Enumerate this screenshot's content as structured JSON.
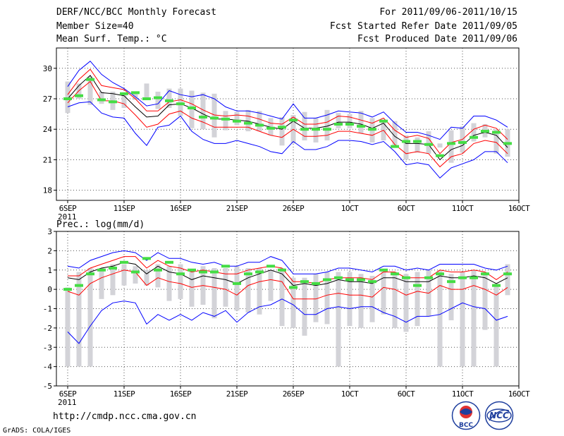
{
  "header": {
    "title": "DERF/NCC/BCC Monthly Forecast",
    "member_size": "Member Size=40",
    "variable": "Mean Surf. Temp.: °C",
    "period": "For 2011/09/06-2011/10/15",
    "started": "Fcst Started Refer Date 2011/09/05",
    "produced": "Fcst Produced Date 2011/09/06"
  },
  "footer": {
    "url": "http://cmdp.ncc.cma.gov.cn",
    "credit": "GrADS: COLA/IGES",
    "logo_left_text": "BCC",
    "logo_right_text": "NCC"
  },
  "colors": {
    "envelope": "#0000ff",
    "spread": "#ff0000",
    "ensemble_mean": "#000000",
    "box": "#d3d3d8",
    "marker": "#44dd44",
    "grid": "#555555"
  },
  "chart_data": [
    {
      "type": "line",
      "title": "Mean Surf. Temp.: °C",
      "x_tick_labels": [
        "6SEP",
        "11SEP",
        "16SEP",
        "21SEP",
        "26SEP",
        "1OCT",
        "6OCT",
        "11OCT",
        "16OCT"
      ],
      "x_tick_days": [
        0,
        5,
        10,
        15,
        20,
        25,
        30,
        35,
        40
      ],
      "x_year_label": "2011",
      "xlim": [
        -1,
        40
      ],
      "ylim": [
        17,
        32
      ],
      "y_ticks": [
        18,
        21,
        24,
        27,
        30
      ],
      "days": [
        0,
        1,
        2,
        3,
        4,
        5,
        6,
        7,
        8,
        9,
        10,
        11,
        12,
        13,
        14,
        15,
        16,
        17,
        18,
        19,
        20,
        21,
        22,
        23,
        24,
        25,
        26,
        27,
        28,
        29,
        30,
        31,
        32,
        33,
        34,
        35,
        36,
        37,
        38,
        39
      ],
      "series": [
        {
          "name": "max",
          "color": "blue",
          "values": [
            28.2,
            29.8,
            30.7,
            29.4,
            28.6,
            28.0,
            27.2,
            26.3,
            26.5,
            27.8,
            27.4,
            27.2,
            27.4,
            27.0,
            26.2,
            25.8,
            25.8,
            25.6,
            25.3,
            25.0,
            26.5,
            25.1,
            25.1,
            25.4,
            25.8,
            25.7,
            25.6,
            25.2,
            25.7,
            24.6,
            23.7,
            23.7,
            23.4,
            23.0,
            24.2,
            24.1,
            25.3,
            25.3,
            24.9,
            24.2
          ]
        },
        {
          "name": "upper",
          "color": "red",
          "values": [
            27.4,
            28.9,
            29.9,
            28.3,
            28.1,
            27.9,
            27.0,
            25.8,
            25.8,
            26.7,
            26.9,
            26.5,
            25.9,
            25.4,
            25.3,
            25.4,
            25.3,
            25.0,
            24.6,
            24.5,
            25.2,
            24.5,
            24.5,
            24.7,
            25.3,
            25.2,
            24.9,
            24.6,
            25.1,
            23.9,
            23.2,
            23.4,
            23.1,
            21.6,
            22.7,
            23.0,
            24.0,
            24.4,
            24.1,
            23.0
          ]
        },
        {
          "name": "mean",
          "color": "black",
          "values": [
            27.0,
            28.3,
            29.3,
            27.6,
            27.5,
            27.3,
            26.2,
            25.2,
            25.3,
            26.4,
            26.5,
            26.1,
            25.5,
            25.0,
            25.0,
            24.9,
            24.8,
            24.5,
            24.2,
            24.0,
            24.8,
            24.1,
            24.1,
            24.3,
            24.7,
            24.7,
            24.5,
            24.1,
            24.6,
            23.3,
            22.6,
            22.6,
            22.5,
            21.0,
            22.0,
            22.4,
            23.4,
            23.7,
            23.4,
            22.2
          ]
        },
        {
          "name": "lower",
          "color": "red",
          "values": [
            26.6,
            27.8,
            28.7,
            26.8,
            26.8,
            26.5,
            25.4,
            24.2,
            24.5,
            25.5,
            25.8,
            25.1,
            24.7,
            24.2,
            24.2,
            24.2,
            24.2,
            23.8,
            23.4,
            23.2,
            24.0,
            23.3,
            23.3,
            23.4,
            23.8,
            23.8,
            23.6,
            23.4,
            23.9,
            22.5,
            21.6,
            21.8,
            21.6,
            20.3,
            21.3,
            21.6,
            22.6,
            22.9,
            22.7,
            21.6
          ]
        },
        {
          "name": "min",
          "color": "blue",
          "values": [
            26.2,
            26.6,
            26.7,
            25.6,
            25.2,
            25.1,
            23.6,
            22.4,
            24.2,
            24.4,
            25.3,
            23.8,
            23.0,
            22.6,
            22.6,
            22.9,
            22.6,
            22.3,
            21.8,
            21.6,
            22.8,
            22.0,
            22.0,
            22.3,
            22.9,
            22.9,
            22.8,
            22.5,
            22.8,
            21.8,
            20.5,
            20.7,
            20.5,
            19.2,
            20.2,
            20.6,
            21.0,
            21.8,
            21.8,
            20.7
          ]
        }
      ],
      "boxes": {
        "low": [
          25.6,
          27.0,
          26.4,
          26.5,
          25.9,
          26.1,
          26.9,
          26.9,
          26.0,
          26.1,
          25.3,
          24.1,
          24.0,
          23.2,
          23.9,
          24.4,
          23.8,
          23.8,
          23.4,
          22.4,
          22.6,
          22.9,
          22.7,
          22.9,
          24.1,
          24.1,
          23.6,
          22.7,
          22.9,
          22.4,
          21.0,
          21.7,
          21.6,
          22.2,
          20.7,
          21.7,
          22.8,
          23.2,
          21.6,
          21.3
        ],
        "high": [
          28.7,
          28.5,
          29.2,
          27.7,
          27.7,
          27.6,
          27.6,
          28.5,
          27.7,
          28.0,
          28.0,
          27.8,
          27.6,
          27.5,
          25.8,
          25.7,
          25.9,
          25.8,
          25.1,
          25.2,
          25.4,
          25.7,
          25.1,
          25.9,
          25.6,
          25.5,
          25.8,
          25.1,
          24.8,
          24.8,
          23.4,
          23.2,
          23.8,
          22.6,
          23.9,
          24.3,
          24.6,
          24.5,
          24.0,
          24.0
        ]
      },
      "markers": [
        27.0,
        27.3,
        28.9,
        26.9,
        26.7,
        27.5,
        27.6,
        27.0,
        27.1,
        26.8,
        26.5,
        26.1,
        25.2,
        25.1,
        25.0,
        24.8,
        24.6,
        24.4,
        24.1,
        24.2,
        24.9,
        24.0,
        24.0,
        24.0,
        24.5,
        24.5,
        24.3,
        24.0,
        24.8,
        22.3,
        22.8,
        22.8,
        22.5,
        21.4,
        22.6,
        22.7,
        23.2,
        23.8,
        23.7,
        22.6
      ]
    },
    {
      "type": "line",
      "title": "Prec.: log(mm/d)",
      "x_tick_labels": [
        "6SEP",
        "11SEP",
        "16SEP",
        "21SEP",
        "26SEP",
        "1OCT",
        "6OCT",
        "11OCT",
        "16OCT"
      ],
      "x_tick_days": [
        0,
        5,
        10,
        15,
        20,
        25,
        30,
        35,
        40
      ],
      "x_year_label": "2011",
      "xlim": [
        -1,
        40
      ],
      "ylim": [
        -5,
        3
      ],
      "y_ticks": [
        -5,
        -4,
        -3,
        -2,
        -1,
        0,
        1,
        2,
        3
      ],
      "days": [
        0,
        1,
        2,
        3,
        4,
        5,
        6,
        7,
        8,
        9,
        10,
        11,
        12,
        13,
        14,
        15,
        16,
        17,
        18,
        19,
        20,
        21,
        22,
        23,
        24,
        25,
        26,
        27,
        28,
        29,
        30,
        31,
        32,
        33,
        34,
        35,
        36,
        37,
        38,
        39
      ],
      "series": [
        {
          "name": "max",
          "color": "blue",
          "values": [
            1.2,
            1.1,
            1.5,
            1.7,
            1.9,
            2.0,
            1.9,
            1.5,
            1.9,
            1.6,
            1.6,
            1.4,
            1.3,
            1.4,
            1.2,
            1.2,
            1.4,
            1.4,
            1.7,
            1.5,
            0.8,
            0.8,
            0.8,
            0.9,
            1.1,
            1.1,
            1.0,
            0.9,
            1.2,
            1.2,
            1.0,
            1.1,
            1.0,
            1.3,
            1.3,
            1.3,
            1.3,
            1.1,
            1.0,
            1.2
          ]
        },
        {
          "name": "upper",
          "color": "red",
          "values": [
            0.7,
            0.7,
            1.1,
            1.3,
            1.5,
            1.7,
            1.7,
            1.1,
            1.5,
            1.2,
            1.1,
            0.9,
            1.0,
            0.9,
            0.8,
            0.8,
            1.0,
            1.1,
            1.2,
            1.1,
            0.4,
            0.4,
            0.3,
            0.5,
            0.6,
            0.6,
            0.6,
            0.5,
            0.9,
            0.9,
            0.6,
            0.6,
            0.6,
            1.0,
            0.9,
            0.9,
            1.0,
            0.9,
            0.5,
            0.9
          ]
        },
        {
          "name": "mean",
          "color": "black",
          "values": [
            0.6,
            0.5,
            0.9,
            1.1,
            1.2,
            1.4,
            1.3,
            0.8,
            1.2,
            0.9,
            0.8,
            0.5,
            0.7,
            0.6,
            0.5,
            0.3,
            0.6,
            0.8,
            1.0,
            0.8,
            0.2,
            0.3,
            0.2,
            0.3,
            0.5,
            0.4,
            0.4,
            0.3,
            0.6,
            0.6,
            0.4,
            0.4,
            0.4,
            0.7,
            0.6,
            0.6,
            0.7,
            0.6,
            0.3,
            0.6
          ]
        },
        {
          "name": "lower",
          "color": "red",
          "values": [
            -0.1,
            -0.3,
            0.3,
            0.6,
            0.8,
            1.0,
            0.9,
            0.2,
            0.6,
            0.4,
            0.3,
            0.1,
            0.2,
            0.1,
            0.0,
            -0.3,
            0.2,
            0.4,
            0.5,
            0.4,
            -0.5,
            -0.5,
            -0.5,
            -0.3,
            -0.2,
            -0.3,
            -0.3,
            -0.4,
            0.1,
            0.0,
            -0.3,
            -0.1,
            -0.2,
            0.2,
            0.0,
            0.0,
            0.2,
            0.0,
            -0.3,
            0.1
          ]
        },
        {
          "name": "min",
          "color": "blue",
          "values": [
            -2.2,
            -2.8,
            -1.9,
            -1.1,
            -0.7,
            -0.6,
            -0.7,
            -1.8,
            -1.3,
            -1.6,
            -1.3,
            -1.6,
            -1.2,
            -1.4,
            -1.1,
            -1.7,
            -1.2,
            -0.9,
            -0.8,
            -0.5,
            -0.8,
            -1.3,
            -1.3,
            -1.0,
            -0.9,
            -1.0,
            -0.9,
            -0.9,
            -1.2,
            -1.4,
            -1.7,
            -1.4,
            -1.4,
            -1.3,
            -1.0,
            -0.7,
            -0.9,
            -1.0,
            -1.6,
            -1.4
          ]
        }
      ],
      "boxes": {
        "low": [
          -4.0,
          -4.0,
          -4.0,
          -0.5,
          -0.3,
          0.2,
          0.3,
          0.2,
          0.1,
          -0.6,
          -0.5,
          -0.9,
          -0.8,
          -1.5,
          -0.9,
          -1.1,
          -1.2,
          -1.3,
          -0.6,
          -1.9,
          -2.0,
          -2.4,
          -1.7,
          -1.8,
          -4.0,
          -1.9,
          -2.0,
          -1.7,
          -1.3,
          -2.0,
          -2.2,
          -1.9,
          -1.4,
          -4.0,
          -1.6,
          -4.0,
          -4.0,
          -2.1,
          -4.0,
          -0.3
        ],
        "high": [
          0.1,
          0.9,
          1.1,
          1.1,
          1.3,
          1.3,
          1.2,
          1.0,
          1.3,
          1.2,
          1.3,
          1.0,
          1.2,
          1.1,
          1.1,
          1.2,
          1.1,
          1.1,
          1.0,
          1.1,
          0.6,
          0.6,
          0.8,
          0.9,
          0.9,
          0.9,
          0.8,
          0.7,
          1.0,
          0.9,
          0.8,
          0.9,
          1.0,
          1.0,
          0.8,
          0.9,
          1.0,
          0.9,
          0.3,
          1.3
        ]
      },
      "markers": [
        0.0,
        0.2,
        0.8,
        1.0,
        1.1,
        1.4,
        0.9,
        1.6,
        1.0,
        1.4,
        0.8,
        1.0,
        0.9,
        0.9,
        1.2,
        0.3,
        0.8,
        0.9,
        1.2,
        1.0,
        0.1,
        0.4,
        0.3,
        0.5,
        0.6,
        0.5,
        0.5,
        0.4,
        1.0,
        0.8,
        0.6,
        0.2,
        0.6,
        0.8,
        0.4,
        0.6,
        0.6,
        0.8,
        0.2,
        0.8
      ]
    }
  ]
}
